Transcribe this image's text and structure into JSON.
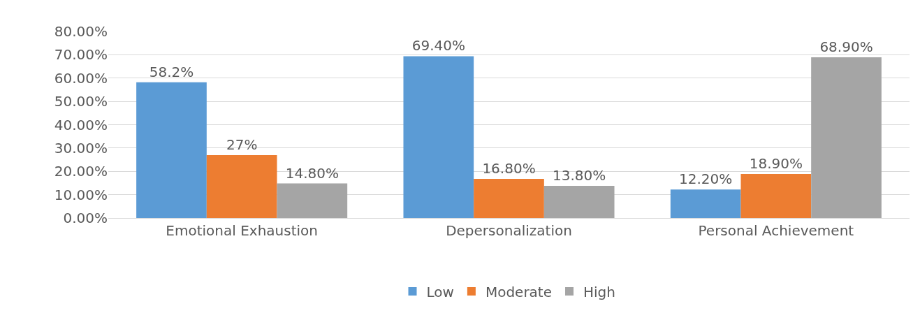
{
  "chart_data": {
    "type": "bar",
    "categories": [
      "Emotional Exhaustion",
      "Depersonalization",
      "Personal Achievement"
    ],
    "series": [
      {
        "name": "Low",
        "color": "#5b9bd5",
        "values": [
          58.2,
          69.4,
          12.2
        ],
        "value_labels": [
          "58.2%",
          "69.40%",
          "12.20%"
        ]
      },
      {
        "name": "Moderate",
        "color": "#ed7d31",
        "values": [
          27,
          16.8,
          18.9
        ],
        "value_labels": [
          "27%",
          "16.80%",
          "18.90%"
        ]
      },
      {
        "name": "High",
        "color": "#a5a5a5",
        "values": [
          14.8,
          13.8,
          68.9
        ],
        "value_labels": [
          "14.80%",
          "13.80%",
          "68.90%"
        ]
      }
    ],
    "ylim": [
      0,
      80
    ],
    "yticks": [
      {
        "value": 0,
        "label": "0.00%"
      },
      {
        "value": 10,
        "label": "10.00%"
      },
      {
        "value": 20,
        "label": "20.00%"
      },
      {
        "value": 30,
        "label": "30.00%"
      },
      {
        "value": 40,
        "label": "40.00%"
      },
      {
        "value": 50,
        "label": "50.00%"
      },
      {
        "value": 60,
        "label": "60.00%"
      },
      {
        "value": 70,
        "label": "70.00%"
      },
      {
        "value": 80,
        "label": "80.00%"
      }
    ],
    "grid": "y",
    "legend": "bottom"
  }
}
